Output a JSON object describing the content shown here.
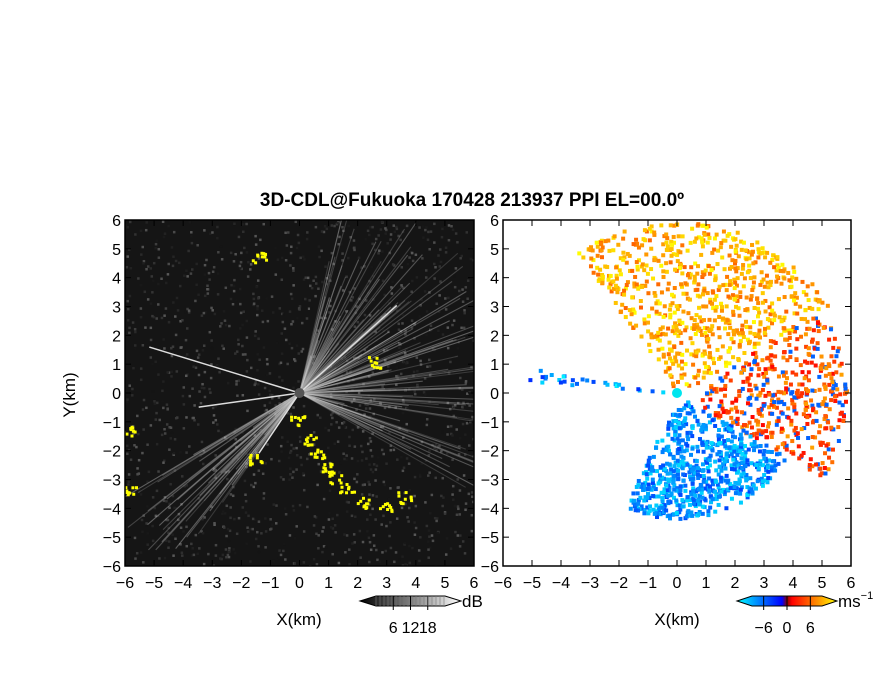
{
  "chart_data": [
    {
      "type": "heatmap",
      "panel": "left",
      "title": "3D-CDL@Fukuoka 170428 213937 PPI EL=00.0º",
      "xlabel": "X(km)",
      "ylabel": "Y(km)",
      "xlim": [
        -6,
        6
      ],
      "ylim": [
        -6,
        6
      ],
      "xticks": [
        "−6",
        "−5",
        "−4",
        "−3",
        "−2",
        "−1",
        "0",
        "1",
        "2",
        "3",
        "4",
        "5",
        "6"
      ],
      "yticks": [
        "6",
        "5",
        "4",
        "3",
        "2",
        "1",
        "0",
        "−1",
        "−2",
        "−3",
        "−4",
        "−5",
        "−6"
      ],
      "colorbar": {
        "unit": "dB",
        "ticks": [
          6,
          12,
          18
        ],
        "tick_labels": [
          "6",
          "12",
          "18"
        ],
        "range": [
          0,
          24
        ],
        "colors": [
          "#000000",
          "#ffffff"
        ]
      },
      "variable": "SNR",
      "colormap": "grayscale",
      "overlay_color": "#ffff00"
    },
    {
      "type": "heatmap",
      "panel": "right",
      "xlabel": "X(km)",
      "xlim": [
        -6,
        6
      ],
      "ylim": [
        -6,
        6
      ],
      "xticks": [
        "−6",
        "−5",
        "−4",
        "−3",
        "−2",
        "−1",
        "0",
        "1",
        "2",
        "3",
        "4",
        "5",
        "6"
      ],
      "yticks": [
        "6",
        "5",
        "4",
        "3",
        "2",
        "1",
        "0",
        "−1",
        "−2",
        "−3",
        "−4",
        "−5",
        "−6"
      ],
      "colorbar": {
        "unit": "ms",
        "unit_exponent": "−1",
        "ticks": [
          -6,
          0,
          6
        ],
        "tick_labels": [
          "−6",
          "0",
          "6"
        ],
        "range": [
          -9,
          9
        ],
        "colors": [
          "#00ffff",
          "#0000ff",
          "#ff0000",
          "#ffff00"
        ]
      },
      "variable": "radial velocity",
      "colormap": "cyan-blue-red-yellow"
    }
  ]
}
